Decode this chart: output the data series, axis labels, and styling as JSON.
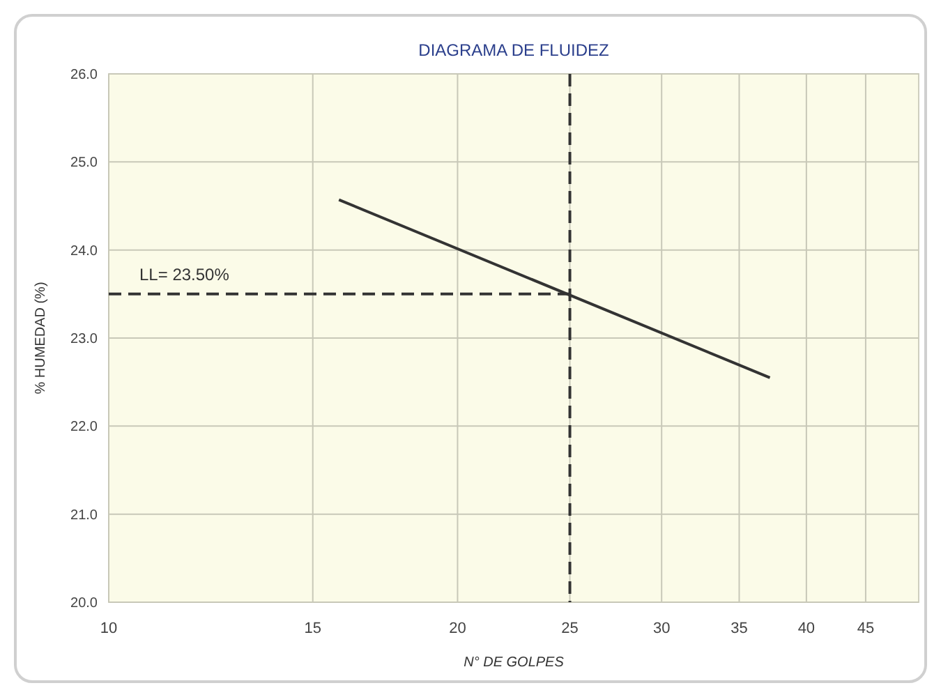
{
  "chart_data": {
    "type": "line",
    "title": "DIAGRAMA DE FLUIDEZ",
    "xlabel": "N° DE GOLPES",
    "ylabel": "% HUMEDAD (%)",
    "x": [
      15.8,
      37.2
    ],
    "series": [
      {
        "color": "#333333",
        "values": [
          24.57,
          22.55
        ]
      }
    ],
    "log": "x",
    "xlim": [
      10,
      50
    ],
    "xticks": [
      10,
      15,
      20,
      25,
      30,
      35,
      40,
      45
    ],
    "ylim": [
      20,
      26
    ],
    "yticks": [
      {
        "value": 20,
        "label": "20.0"
      },
      {
        "value": 21,
        "label": "21.0"
      },
      {
        "value": 22,
        "label": "22.0"
      },
      {
        "value": 23,
        "label": "23.0"
      },
      {
        "value": 24,
        "label": "24.0"
      },
      {
        "value": 25,
        "label": "25.0"
      },
      {
        "value": 26,
        "label": "26.0"
      }
    ],
    "grid": true,
    "marker": "none",
    "line_style": "solid",
    "ref_lines": [
      {
        "axis": "y",
        "value": 23.5,
        "label": "LL= 23.50%",
        "color": "#333333",
        "line_style": "dashed"
      },
      {
        "axis": "x",
        "value": 25,
        "label": null,
        "color": "#333333",
        "line_style": "dashed"
      }
    ]
  }
}
